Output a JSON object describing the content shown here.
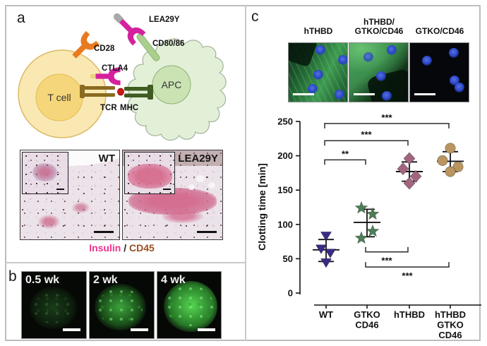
{
  "figure": {
    "panel_a": {
      "label": "a",
      "diagram": {
        "t_cell": "T cell",
        "apc": "APC",
        "cd28": "CD28",
        "ctla4": "CTLA4",
        "tcr": "TCR",
        "mhc": "MHC",
        "lea29y": "LEA29Y",
        "cd80_86": "CD80/86",
        "colors": {
          "cd28": "#e87a1f",
          "ctla4_lea29y": "#d4219e",
          "cd80_86": "#a8cf8d",
          "tcr": "#8a6b20",
          "mhc": "#3f5c22",
          "t_cell": "#f9e8b2",
          "apc": "#e3f0d8"
        }
      },
      "histology": {
        "left_label": "WT",
        "right_label": "LEA29Y",
        "caption_insulin": "Insulin",
        "caption_sep": " / ",
        "caption_cd45": "CD45",
        "caption_colors": {
          "insulin": "#f0318f",
          "cd45": "#9c4f1e"
        }
      }
    },
    "panel_b": {
      "label": "b",
      "images": [
        {
          "label": "0.5 wk"
        },
        {
          "label": "2 wk"
        },
        {
          "label": "4 wk"
        }
      ]
    },
    "panel_c": {
      "label": "c",
      "image_labels": [
        [
          "hTHBD"
        ],
        [
          "hTHBD/",
          "GTKO/CD46"
        ],
        [
          "GTKO/CD46"
        ]
      ]
    }
  },
  "chart_data": {
    "type": "scatter",
    "title": "",
    "xlabel": "",
    "ylabel": "Clotting time [min]",
    "ylim": [
      0,
      250
    ],
    "yticks": [
      0,
      50,
      100,
      150,
      200,
      250
    ],
    "grid": false,
    "legend": "none",
    "categories": [
      "WT",
      "GTKO CD46",
      "hTHBD",
      "hTHBD GTKO CD46"
    ],
    "category_label_lines": [
      [
        "WT"
      ],
      [
        "GTKO",
        "CD46"
      ],
      [
        "hTHBD"
      ],
      [
        "hTHBD",
        "GTKO",
        "CD46"
      ]
    ],
    "series": [
      {
        "name": "WT",
        "marker": "triangle-down",
        "color": "#3b2a86",
        "values": [
          84,
          65,
          59,
          45
        ],
        "mean": 63,
        "sd_low": 46,
        "sd_high": 78
      },
      {
        "name": "GTKO CD46",
        "marker": "star",
        "color": "#4e7e57",
        "values": [
          124,
          115,
          90,
          80
        ],
        "mean": 103,
        "sd_low": 82,
        "sd_high": 122
      },
      {
        "name": "hTHBD",
        "marker": "diamond",
        "color": "#a26580",
        "values": [
          196,
          181,
          170,
          160
        ],
        "mean": 177,
        "sd_low": 163,
        "sd_high": 191
      },
      {
        "name": "hTHBD GTKO CD46",
        "marker": "circle",
        "color": "#b9965f",
        "values": [
          211,
          193,
          184,
          177
        ],
        "mean": 192,
        "sd_low": 177,
        "sd_high": 206
      }
    ],
    "point_dx": [
      [
        0,
        -7,
        6,
        0
      ],
      [
        -8,
        8,
        8,
        -8
      ],
      [
        0,
        -9,
        9,
        0
      ],
      [
        0,
        -11,
        11,
        0
      ]
    ],
    "significance": [
      {
        "from": 0,
        "to": 1,
        "y": 194,
        "label": "**",
        "side": "top"
      },
      {
        "from": 0,
        "to": 2,
        "y": 222,
        "label": "***",
        "side": "top"
      },
      {
        "from": 0,
        "to": 3,
        "y": 247,
        "label": "***",
        "side": "top"
      },
      {
        "from": 1,
        "to": 2,
        "y": 60,
        "label": "***",
        "side": "bottom"
      },
      {
        "from": 1,
        "to": 3,
        "y": 38,
        "label": "***",
        "side": "bottom"
      }
    ]
  }
}
